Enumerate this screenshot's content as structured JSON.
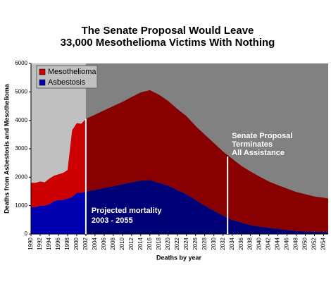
{
  "chart_data": {
    "type": "stacked_area",
    "title": [
      "The Senate Proposal Would Leave",
      "33,000 Mesothelioma Victims With Nothing"
    ],
    "x_label": "Deaths by year",
    "y_label": "Deaths from Asbestosis and Mesothelioma",
    "x": [
      1990,
      1991,
      1992,
      1993,
      1994,
      1995,
      1996,
      1997,
      1998,
      1999,
      2000,
      2001,
      2002,
      2004,
      2006,
      2008,
      2010,
      2012,
      2014,
      2016,
      2018,
      2020,
      2022,
      2024,
      2026,
      2028,
      2030,
      2032,
      2034,
      2036,
      2038,
      2040,
      2042,
      2044,
      2046,
      2048,
      2050,
      2052,
      2054,
      2055
    ],
    "series": [
      {
        "name": "Asbestosis",
        "color": "#0000b0",
        "values": [
          950,
          950,
          1000,
          1000,
          1050,
          1150,
          1200,
          1200,
          1250,
          1300,
          1450,
          1450,
          1500,
          1550,
          1620,
          1680,
          1750,
          1820,
          1880,
          1900,
          1800,
          1700,
          1550,
          1400,
          1200,
          1000,
          820,
          650,
          500,
          400,
          320,
          260,
          220,
          180,
          140,
          110,
          90,
          80,
          70,
          70
        ]
      },
      {
        "name": "Mesothelioma",
        "color": "#cc0000",
        "values": [
          850,
          850,
          850,
          820,
          900,
          900,
          900,
          950,
          1000,
          2350,
          2450,
          2430,
          2550,
          2650,
          2730,
          2820,
          2900,
          3000,
          3100,
          3160,
          3100,
          2980,
          2850,
          2750,
          2600,
          2500,
          2380,
          2250,
          2150,
          2000,
          1880,
          1760,
          1630,
          1540,
          1460,
          1370,
          1310,
          1240,
          1210,
          1180
        ]
      }
    ],
    "xlim": [
      1990,
      2055
    ],
    "xticks": [
      1990,
      1992,
      1994,
      1996,
      1998,
      2000,
      2002,
      2004,
      2006,
      2008,
      2010,
      2012,
      2014,
      2016,
      2018,
      2020,
      2022,
      2024,
      2026,
      2028,
      2030,
      2032,
      2034,
      2036,
      2038,
      2040,
      2042,
      2044,
      2046,
      2048,
      2050,
      2052,
      2054
    ],
    "ylim": [
      0,
      6000
    ],
    "yticks": [
      0,
      1000,
      2000,
      3000,
      4000,
      5000,
      6000
    ],
    "legend": "top-left",
    "markers": [
      {
        "x": 2002,
        "label": [
          "Projected mortality",
          "2003 - 2055"
        ]
      },
      {
        "x": 2033,
        "label": [
          "Senate Proposal",
          "Terminates",
          "All Assistance"
        ]
      }
    ]
  }
}
